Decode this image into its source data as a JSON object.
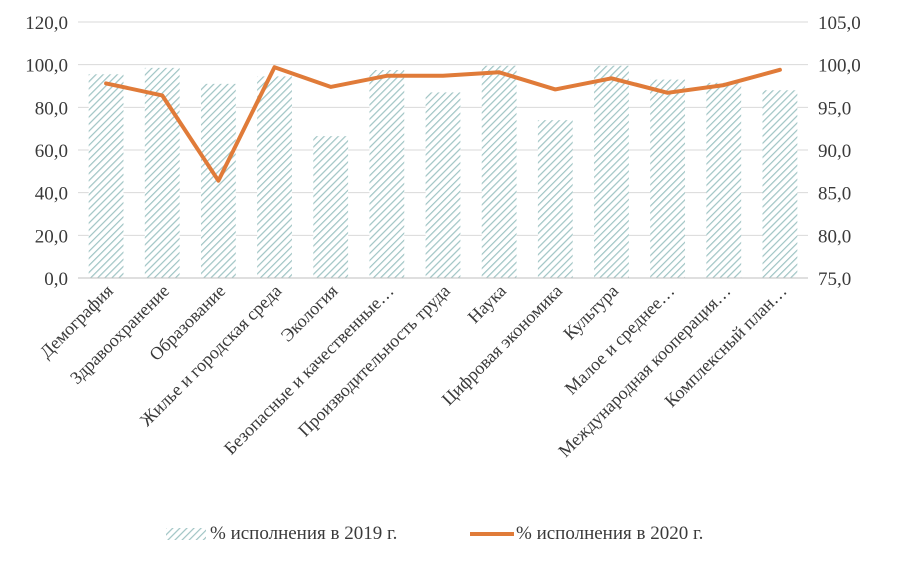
{
  "chart_data": {
    "type": "bar",
    "categories": [
      "Демография",
      "Здравоохранение",
      "Образование",
      "Жилье и городская среда",
      "Экология",
      "Безопасные и качественные…",
      "Производительность труда",
      "Наука",
      "Цифровая экономика",
      "Культура",
      "Малое и среднее…",
      "Международная кооперация…",
      "Комплексный план…"
    ],
    "series": [
      {
        "name": "% исполнения в 2019 г.",
        "type": "bar",
        "axis": "left",
        "values": [
          95.5,
          98.5,
          91.0,
          94.5,
          66.5,
          97.5,
          87.0,
          99.5,
          74.0,
          99.5,
          93.0,
          91.5,
          88.0
        ]
      },
      {
        "name": "% исполнения в 2020 г.",
        "type": "line",
        "axis": "right",
        "values": [
          97.8,
          96.4,
          86.4,
          99.7,
          97.4,
          98.7,
          98.7,
          99.1,
          97.1,
          98.4,
          96.7,
          97.6,
          99.4
        ]
      }
    ],
    "yleft": {
      "min": 0,
      "max": 120,
      "step": 20,
      "ticks": [
        "0,0",
        "20,0",
        "40,0",
        "60,0",
        "80,0",
        "100,0",
        "120,0"
      ]
    },
    "yright": {
      "min": 75,
      "max": 105,
      "step": 5,
      "ticks": [
        "75,0",
        "80,0",
        "85,0",
        "90,0",
        "95,0",
        "100,0",
        "105,0"
      ]
    },
    "grid": true,
    "legend_position": "bottom",
    "colors": {
      "bar_hatch": "#9fc4c4",
      "line": "#e07b39",
      "grid": "#d9d9d9",
      "axis": "#bfbfbf"
    }
  }
}
